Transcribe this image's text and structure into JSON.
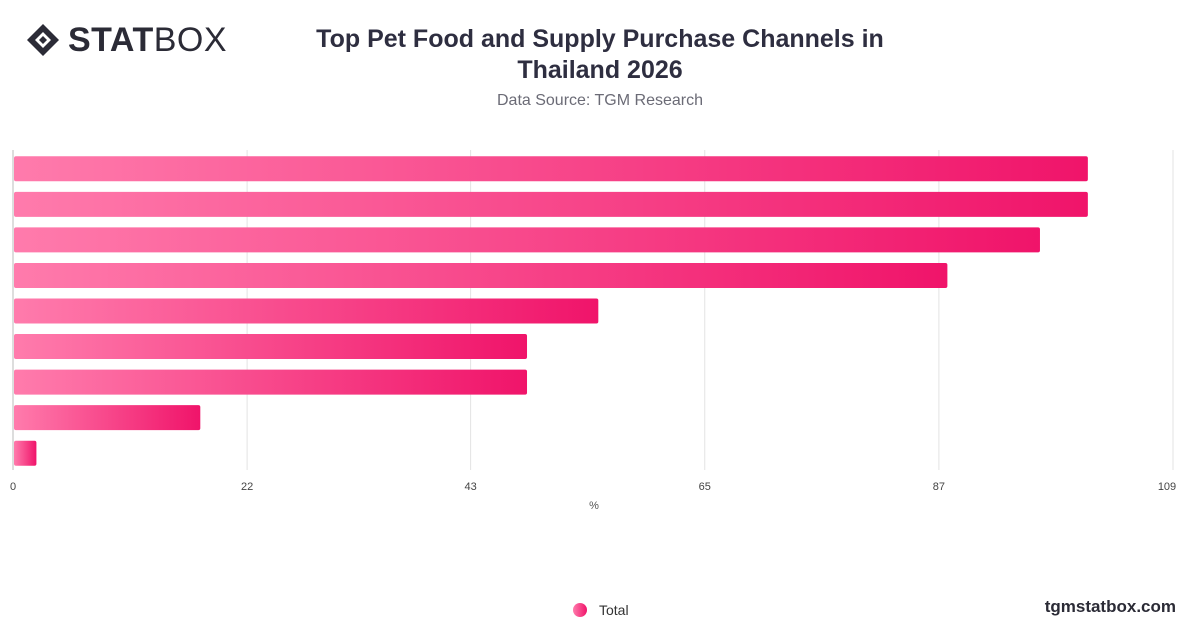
{
  "brand": {
    "logo_bold": "STAT",
    "logo_light": "BOX",
    "logo_icon": "diamond-logo-icon"
  },
  "title": "Top Pet Food and Supply Purchase Channels in Thailand 2026",
  "subtitle": "Data Source: TGM Research",
  "footer": "tgmstatbox.com",
  "colors": {
    "bar_start": "#ff7bac",
    "bar_end": "#f0146a",
    "grid": "#e3e3e3"
  },
  "chart_data": {
    "type": "bar",
    "orientation": "horizontal",
    "categories": [
      "",
      "",
      "",
      "",
      "",
      "",
      "",
      "",
      ""
    ],
    "series": [
      {
        "name": "Total",
        "values": [
          101,
          101,
          96.5,
          87.8,
          55,
          48.3,
          48.3,
          17.6,
          2.2
        ]
      }
    ],
    "xlabel": "%",
    "xlim": [
      0,
      109
    ],
    "xticks": [
      0,
      22,
      43,
      65,
      87,
      109
    ],
    "grid": true,
    "legend": "bottom-center"
  }
}
